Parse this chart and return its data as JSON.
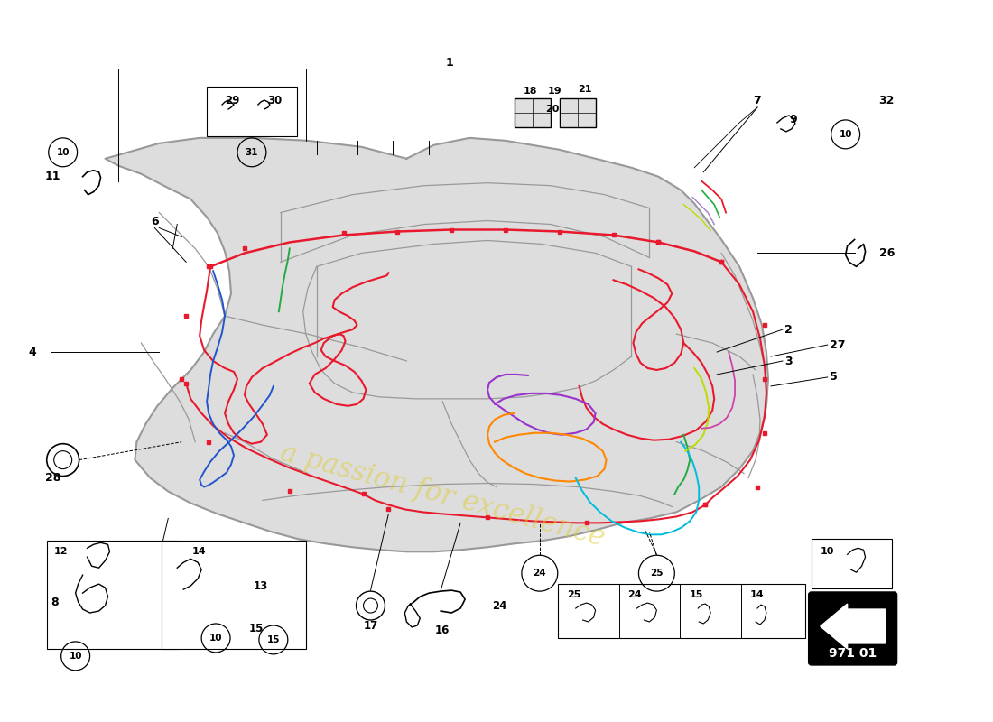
{
  "bg_color": "#ffffff",
  "part_number": "971 01",
  "wiring_red": "#e8192c",
  "wiring_blue": "#2255cc",
  "wiring_green": "#22aa44",
  "wiring_purple": "#9933cc",
  "wiring_orange": "#ff8800",
  "wiring_cyan": "#00bbdd",
  "wiring_yellow_green": "#99cc00",
  "wiring_lime": "#bbdd00",
  "car_fill": "#d8d8d8",
  "car_edge": "#999999",
  "car_inner": "#bbbbbb",
  "watermark_text": "a passion for excellence",
  "watermark_color": "#ddcc33",
  "watermark_alpha": 0.5,
  "fig_w": 11.0,
  "fig_h": 8.0
}
